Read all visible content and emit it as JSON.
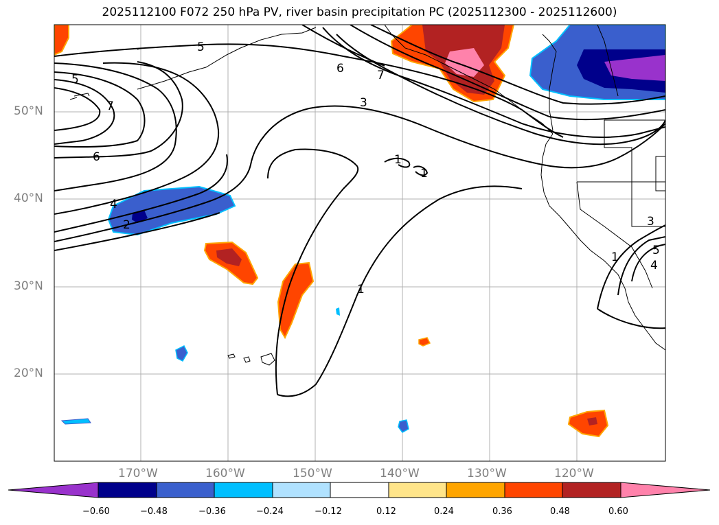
{
  "title": "2025112100 F072 250 hPa PV, river basin precipitation PC (2025112300 - 2025112600)",
  "lat_labels": [
    "50°N",
    "40°N",
    "30°N",
    "20°N"
  ],
  "lon_labels": [
    "170°W",
    "160°W",
    "150°W",
    "140°W",
    "130°W",
    "120°W"
  ],
  "colorbar": {
    "labels": [
      "−0.60",
      "−0.48",
      "−0.36",
      "−0.24",
      "−0.12",
      "0.12",
      "0.24",
      "0.36",
      "0.48",
      "0.60"
    ],
    "colors": [
      "#9932cc",
      "#00008b",
      "#3a5fcd",
      "#00bfff",
      "#b0e2ff",
      "#ffffff",
      "#ffe58a",
      "#ffa500",
      "#ff4500",
      "#b22222",
      "#ff82ab"
    ]
  },
  "contour_labels": [
    "5",
    "5",
    "7",
    "6",
    "4",
    "2",
    "6",
    "7",
    "3",
    "1",
    "1",
    "1",
    "1",
    "3",
    "5",
    "4"
  ],
  "colors": {
    "pos_outer": "#ff4500",
    "pos_mid": "#b22222",
    "pos_high": "#ff82ab",
    "neg_outer": "#3a5fcd",
    "neg_mid": "#00008b",
    "neg_high": "#9932cc",
    "neg_edge": "#00bfff",
    "pos_edge": "#ffa500"
  }
}
